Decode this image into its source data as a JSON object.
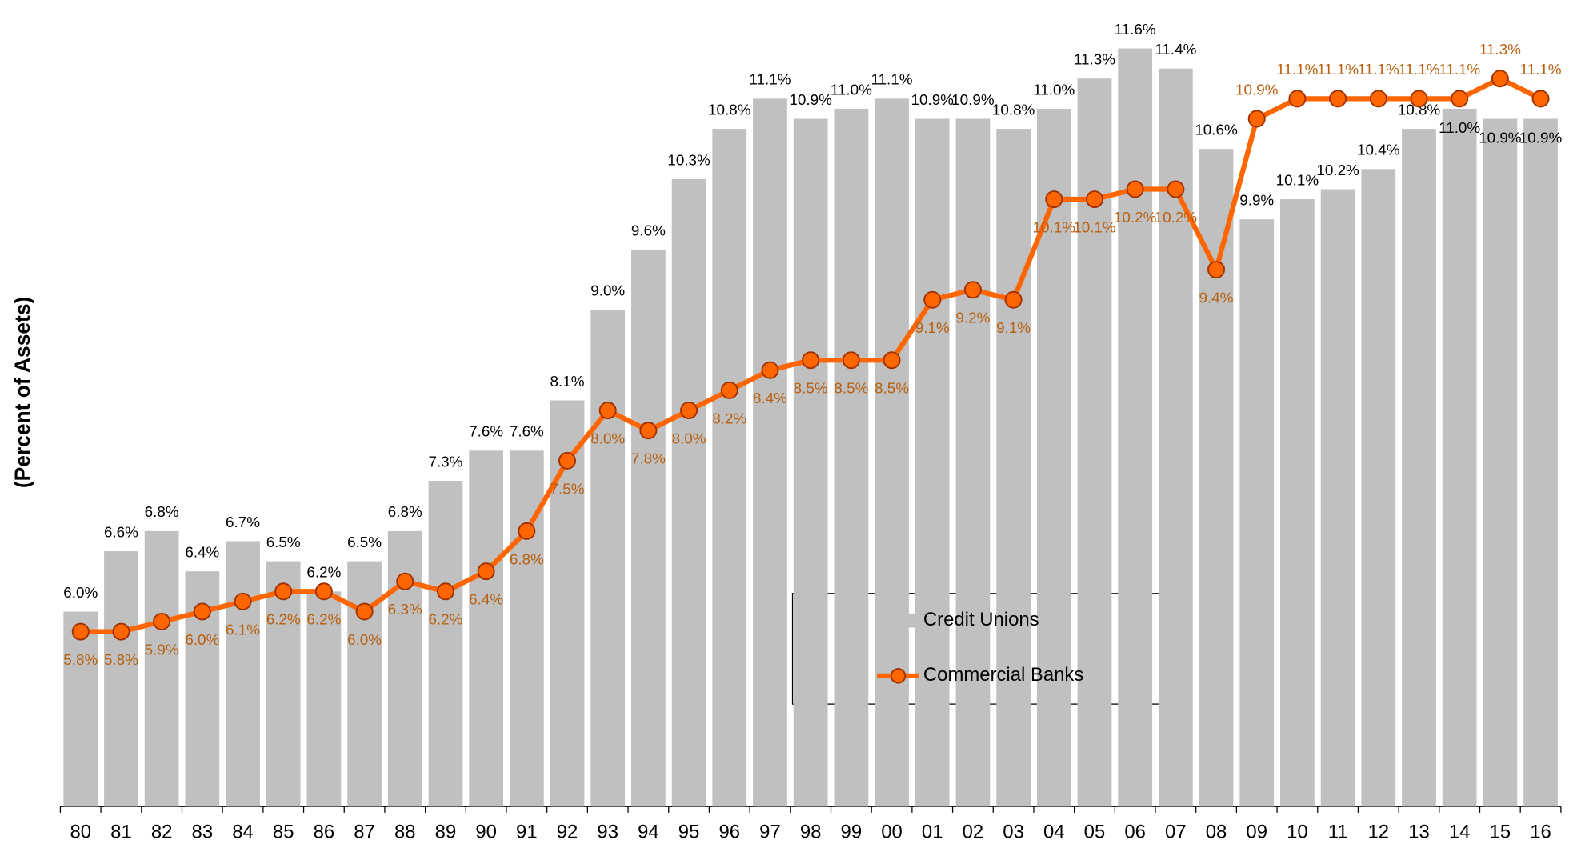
{
  "chart_data": {
    "type": "bar",
    "y_label": "(Percent of Assets)",
    "categories": [
      "80",
      "81",
      "82",
      "83",
      "84",
      "85",
      "86",
      "87",
      "88",
      "89",
      "90",
      "91",
      "92",
      "93",
      "94",
      "95",
      "96",
      "97",
      "98",
      "99",
      "00",
      "01",
      "02",
      "03",
      "04",
      "05",
      "06",
      "07",
      "08",
      "09",
      "10",
      "11",
      "12",
      "13",
      "14",
      "15",
      "16"
    ],
    "series": [
      {
        "name": "Credit Unions",
        "type": "bar",
        "color": "#c0c0c0",
        "values": [
          6.0,
          6.6,
          6.8,
          6.4,
          6.7,
          6.5,
          6.2,
          6.5,
          6.8,
          7.3,
          7.6,
          7.6,
          8.1,
          9.0,
          9.6,
          10.3,
          10.8,
          11.1,
          10.9,
          11.0,
          11.1,
          10.9,
          10.9,
          10.8,
          11.0,
          11.3,
          11.6,
          11.4,
          10.6,
          9.9,
          10.1,
          10.2,
          10.4,
          10.8,
          11.0,
          10.9,
          10.9
        ],
        "value_labels": [
          "6.0%",
          "6.6%",
          "6.8%",
          "6.4%",
          "6.7%",
          "6.5%",
          "6.2%",
          "6.5%",
          "6.8%",
          "7.3%",
          "7.6%",
          "7.6%",
          "8.1%",
          "9.0%",
          "9.6%",
          "10.3%",
          "10.8%",
          "11.1%",
          "10.9%",
          "11.0%",
          "11.1%",
          "10.9%",
          "10.9%",
          "10.8%",
          "11.0%",
          "11.3%",
          "11.6%",
          "11.4%",
          "10.6%",
          "9.9%",
          "10.1%",
          "10.2%",
          "10.4%",
          "10.8%",
          "11.0%",
          "10.9%",
          "10.9%"
        ]
      },
      {
        "name": "Commercial Banks",
        "type": "line",
        "color": "#ff6600",
        "values": [
          5.8,
          5.8,
          5.9,
          6.0,
          6.1,
          6.2,
          6.2,
          6.0,
          6.3,
          6.2,
          6.4,
          6.8,
          7.5,
          8.0,
          7.8,
          8.0,
          8.2,
          8.4,
          8.5,
          8.5,
          8.5,
          9.1,
          9.2,
          9.1,
          10.1,
          10.1,
          10.2,
          10.2,
          9.4,
          10.9,
          11.1,
          11.1,
          11.1,
          11.1,
          11.1,
          11.3,
          11.1
        ],
        "value_labels": [
          "5.8%",
          "5.8%",
          "5.9%",
          "6.0%",
          "6.1%",
          "6.2%",
          "6.2%",
          "6.0%",
          "6.3%",
          "6.2%",
          "6.4%",
          "6.8%",
          "7.5%",
          "8.0%",
          "7.8%",
          "8.0%",
          "8.2%",
          "8.4%",
          "8.5%",
          "8.5%",
          "8.5%",
          "9.1%",
          "9.2%",
          "9.1%",
          "10.1%",
          "10.1%",
          "10.2%",
          "10.2%",
          "9.4%",
          "10.9%",
          "11.1%",
          "11.1%",
          "11.1%",
          "11.1%",
          "11.1%",
          "11.3%",
          "11.1%"
        ]
      }
    ],
    "ylim": [
      4.06,
      12.0
    ]
  }
}
